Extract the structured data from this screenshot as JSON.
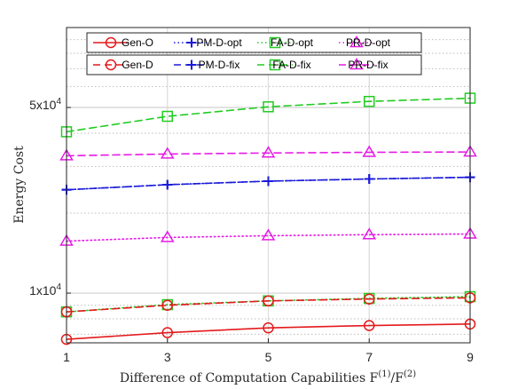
{
  "chart_data": {
    "type": "line",
    "xlabel": "Difference of Computation Capabilities F",
    "xlabel_math": {
      "sup1": "(1)",
      "slash": "/F",
      "sup2": "(2)"
    },
    "ylabel": "Energy Cost",
    "x": [
      1,
      3,
      5,
      7,
      9
    ],
    "x_ticks": [
      "1",
      "3",
      "5",
      "7",
      "9"
    ],
    "y_ticks": [
      {
        "value": 50000,
        "base": "5x10",
        "exp": "4"
      },
      {
        "value": 10000,
        "base": "1x10",
        "exp": "4"
      }
    ],
    "yscale": "log",
    "xlim": [
      1,
      9
    ],
    "ylim": [
      6500,
      100000
    ],
    "grid": true,
    "legend_position": "top",
    "series": [
      {
        "name": "Gen-O",
        "color": "#e41a1c",
        "dash": "solid",
        "marker": "circle",
        "values": [
          6700,
          7100,
          7400,
          7550,
          7650
        ]
      },
      {
        "name": "PM-D-opt",
        "color": "#1a1adb",
        "dash": "dotted",
        "marker": "plus",
        "values": [
          24500,
          25600,
          26400,
          26900,
          27300
        ]
      },
      {
        "name": "FA-D-opt",
        "color": "#22cc22",
        "dash": "dotted",
        "marker": "square",
        "values": [
          8500,
          9050,
          9350,
          9550,
          9700
        ]
      },
      {
        "name": "PR-D-opt",
        "color": "#e61ae6",
        "dash": "dotted",
        "marker": "triangle",
        "values": [
          15700,
          16200,
          16450,
          16600,
          16700
        ]
      },
      {
        "name": "Gen-D",
        "color": "#e41a1c",
        "dash": "dashed",
        "marker": "circle",
        "values": [
          8500,
          9000,
          9350,
          9500,
          9600
        ]
      },
      {
        "name": "PM-D-fix",
        "color": "#1a1adb",
        "dash": "dashed",
        "marker": "plus",
        "values": [
          24500,
          25600,
          26400,
          26900,
          27300
        ]
      },
      {
        "name": "FA-D-fix",
        "color": "#22cc22",
        "dash": "dashed",
        "marker": "square",
        "values": [
          40500,
          46300,
          50300,
          52700,
          54200
        ]
      },
      {
        "name": "PR-D-fix",
        "color": "#e61ae6",
        "dash": "dashed",
        "marker": "triangle",
        "values": [
          32900,
          33400,
          33700,
          33900,
          34000
        ]
      }
    ]
  }
}
